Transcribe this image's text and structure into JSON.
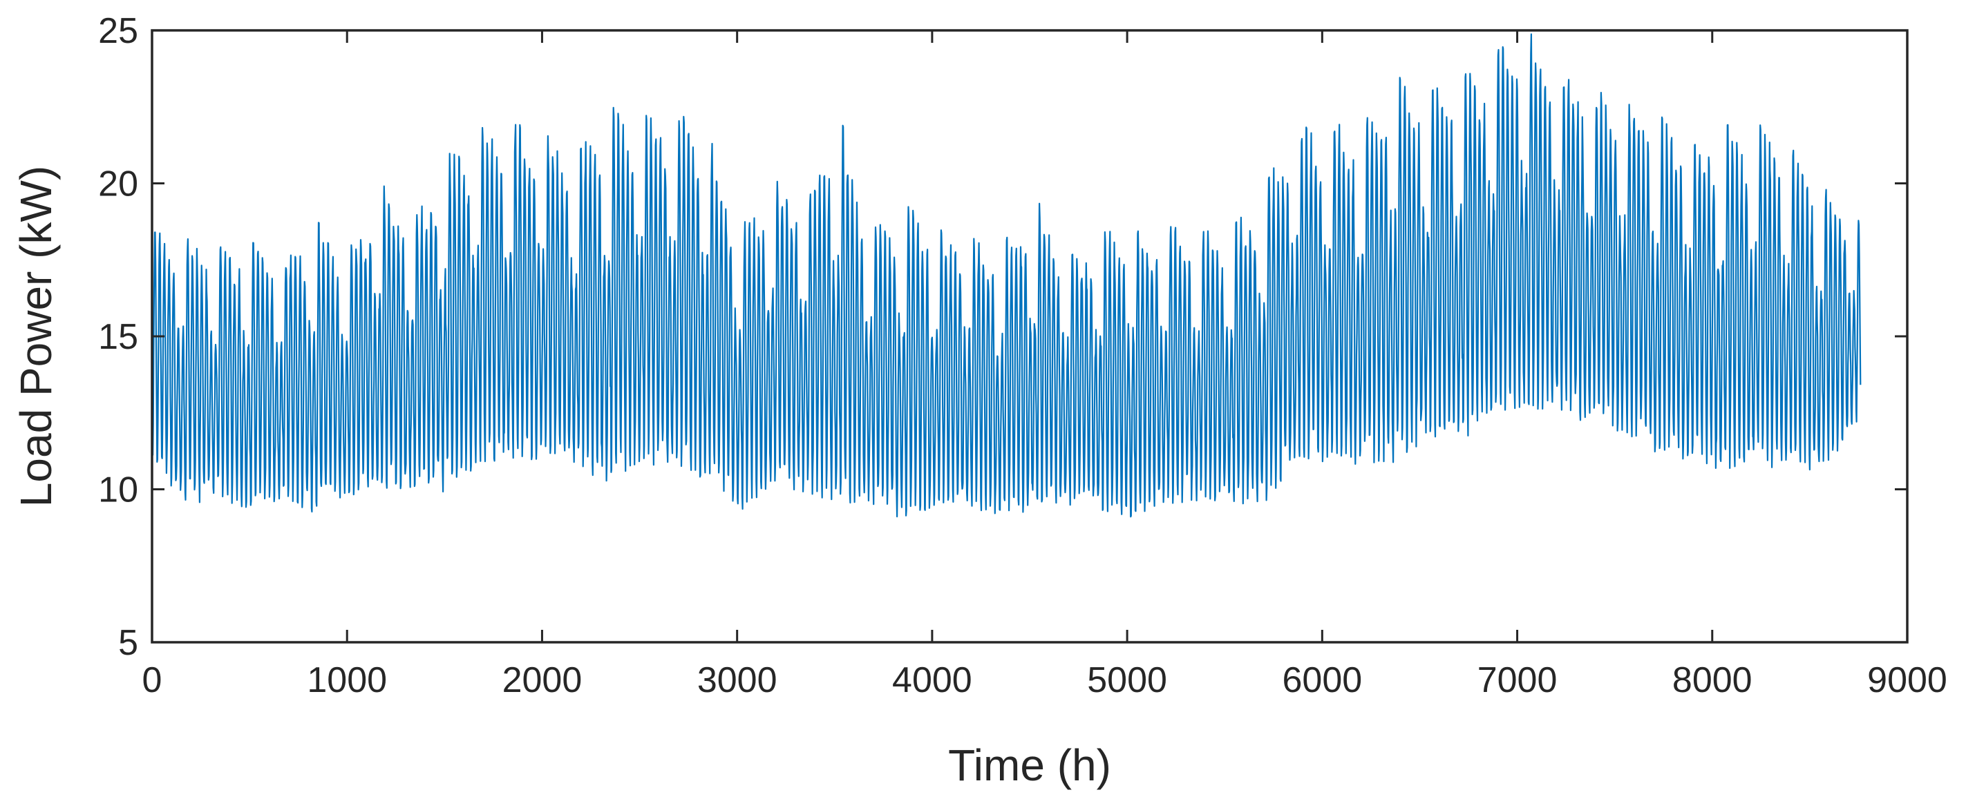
{
  "chart_data": {
    "type": "line",
    "title": "",
    "xlabel": "Time (h)",
    "ylabel": "Load Power (kW)",
    "xlim": [
      0,
      9000
    ],
    "ylim": [
      5,
      25
    ],
    "x_ticks": [
      0,
      1000,
      2000,
      3000,
      4000,
      5000,
      6000,
      7000,
      8000,
      9000
    ],
    "y_ticks": [
      5,
      10,
      15,
      20,
      25
    ],
    "grid": false,
    "legend": "none",
    "line_color": "#0072BD",
    "series": [
      {
        "x_unit": "hour of year",
        "x": [
          0,
          168,
          336,
          504,
          672,
          840,
          1008,
          1176,
          1344,
          1512,
          1680,
          1848,
          2016,
          2184,
          2352,
          2520,
          2688,
          2856,
          3024,
          3192,
          3360,
          3528,
          3696,
          3864,
          4032,
          4200,
          4368,
          4536,
          4704,
          4872,
          5040,
          5208,
          5376,
          5544,
          5712,
          5880,
          6048,
          6216,
          6384,
          6552,
          6720,
          6888,
          7056,
          7224,
          7392,
          7560,
          7728,
          7896,
          8064,
          8232,
          8400,
          8568,
          8736
        ],
        "weekly_max_kW": [
          18.4,
          18.4,
          17.9,
          18.1,
          17.6,
          18.8,
          17.8,
          20.0,
          18.9,
          20.9,
          21.8,
          22.0,
          21.6,
          21.0,
          22.5,
          22.2,
          22.4,
          21.6,
          18.6,
          20.1,
          19.6,
          22.2,
          18.5,
          19.3,
          18.5,
          18.2,
          18.1,
          19.5,
          17.6,
          18.4,
          18.5,
          18.6,
          18.4,
          18.6,
          20.0,
          22.1,
          21.9,
          22.0,
          23.5,
          23.0,
          23.5,
          24.3,
          25.0,
          23.7,
          23.1,
          22.6,
          22.3,
          21.2,
          21.9,
          22.0,
          21.2,
          19.9,
          18.8
        ],
        "weekly_min_kW": [
          10.5,
          9.0,
          9.2,
          8.9,
          9.2,
          8.7,
          9.3,
          9.4,
          9.5,
          9.4,
          10.3,
          10.3,
          10.4,
          10.0,
          9.6,
          10.2,
          10.0,
          9.8,
          8.8,
          9.5,
          9.3,
          8.9,
          9.0,
          8.5,
          9.0,
          8.8,
          8.6,
          8.8,
          9.0,
          8.8,
          8.6,
          9.0,
          9.2,
          9.0,
          9.0,
          10.3,
          10.3,
          10.2,
          10.3,
          11.1,
          10.9,
          11.6,
          12.0,
          11.8,
          11.5,
          11.2,
          10.6,
          10.3,
          10.0,
          10.2,
          10.0,
          10.0,
          11.8
        ]
      }
    ]
  }
}
